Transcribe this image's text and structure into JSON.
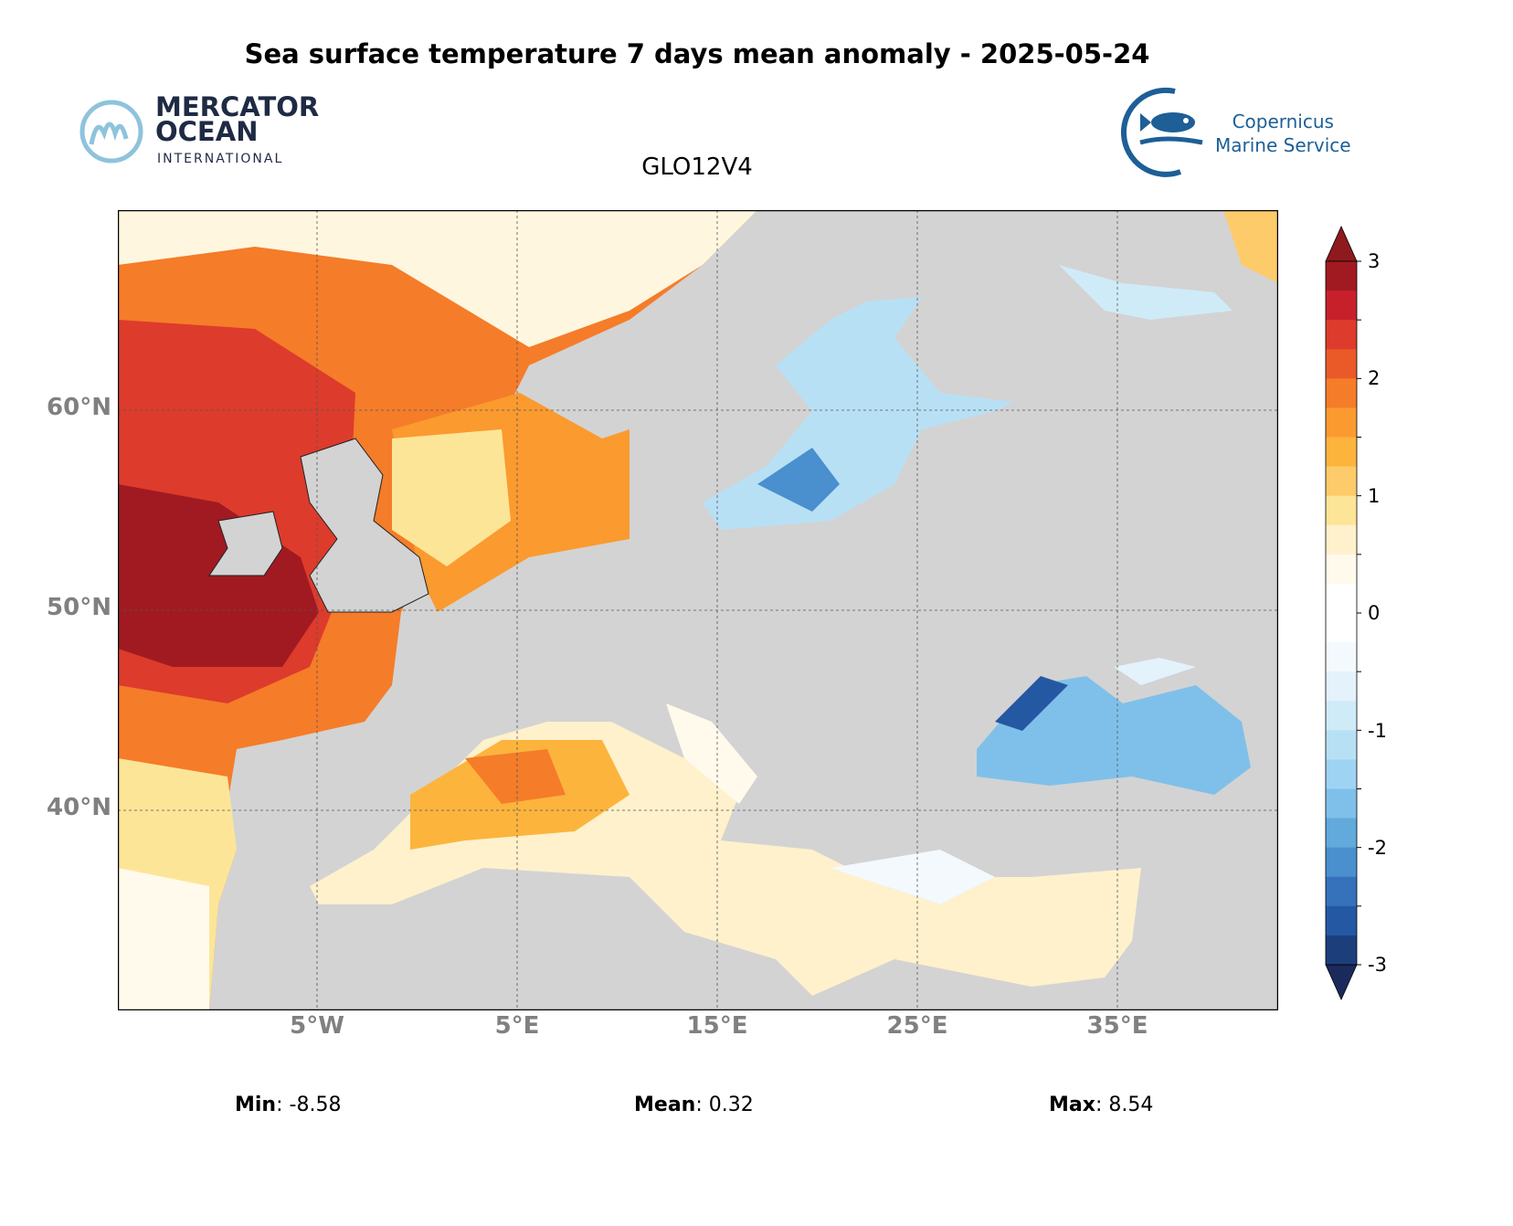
{
  "title": "Sea surface temperature 7 days mean anomaly - 2025-05-24",
  "subtitle": "GLO12V4",
  "logos": {
    "left": {
      "line1": "MERCATOR",
      "line2": "OCEAN",
      "line3": "INTERNATIONAL"
    },
    "right": {
      "line1": "Copernicus",
      "line2": "Marine Service"
    }
  },
  "chart_data": {
    "type": "heatmap",
    "title": "Sea surface temperature 7 days mean anomaly - 2025-05-24",
    "model": "GLO12V4",
    "lon_range": [
      -15,
      43
    ],
    "lat_range": [
      30,
      70
    ],
    "lon_ticks": [
      "5°W",
      "5°E",
      "15°E",
      "25°E",
      "35°E"
    ],
    "lat_ticks": [
      "60°N",
      "50°N",
      "40°N"
    ],
    "colorbar": {
      "ticks": [
        "3",
        "2",
        "1",
        "0",
        "-1",
        "-2",
        "-3"
      ],
      "range": [
        -3,
        3
      ],
      "extend": "both",
      "colors": [
        "#a11a21",
        "#c8202a",
        "#dd3b2c",
        "#ea5a29",
        "#f57c29",
        "#fb9a2f",
        "#fcb43d",
        "#fdcb6a",
        "#fde598",
        "#fef1cc",
        "#fffaeb",
        "#ffffff",
        "#ffffff",
        "#f3f9fd",
        "#e3f2fb",
        "#d0ebf8",
        "#b8e0f5",
        "#9fd3f3",
        "#7fc0ea",
        "#62a9dc",
        "#4a8fce",
        "#3572bb",
        "#2558a3",
        "#1c3f7c"
      ],
      "over": "#8e1a1d",
      "under": "#1b2a5c"
    },
    "land_color": "#d3d3d3"
  },
  "stats": {
    "min_label": "Min",
    "min": ": -8.58",
    "mean_label": "Mean",
    "mean": ": 0.32",
    "max_label": "Max",
    "max": ": 8.54"
  }
}
